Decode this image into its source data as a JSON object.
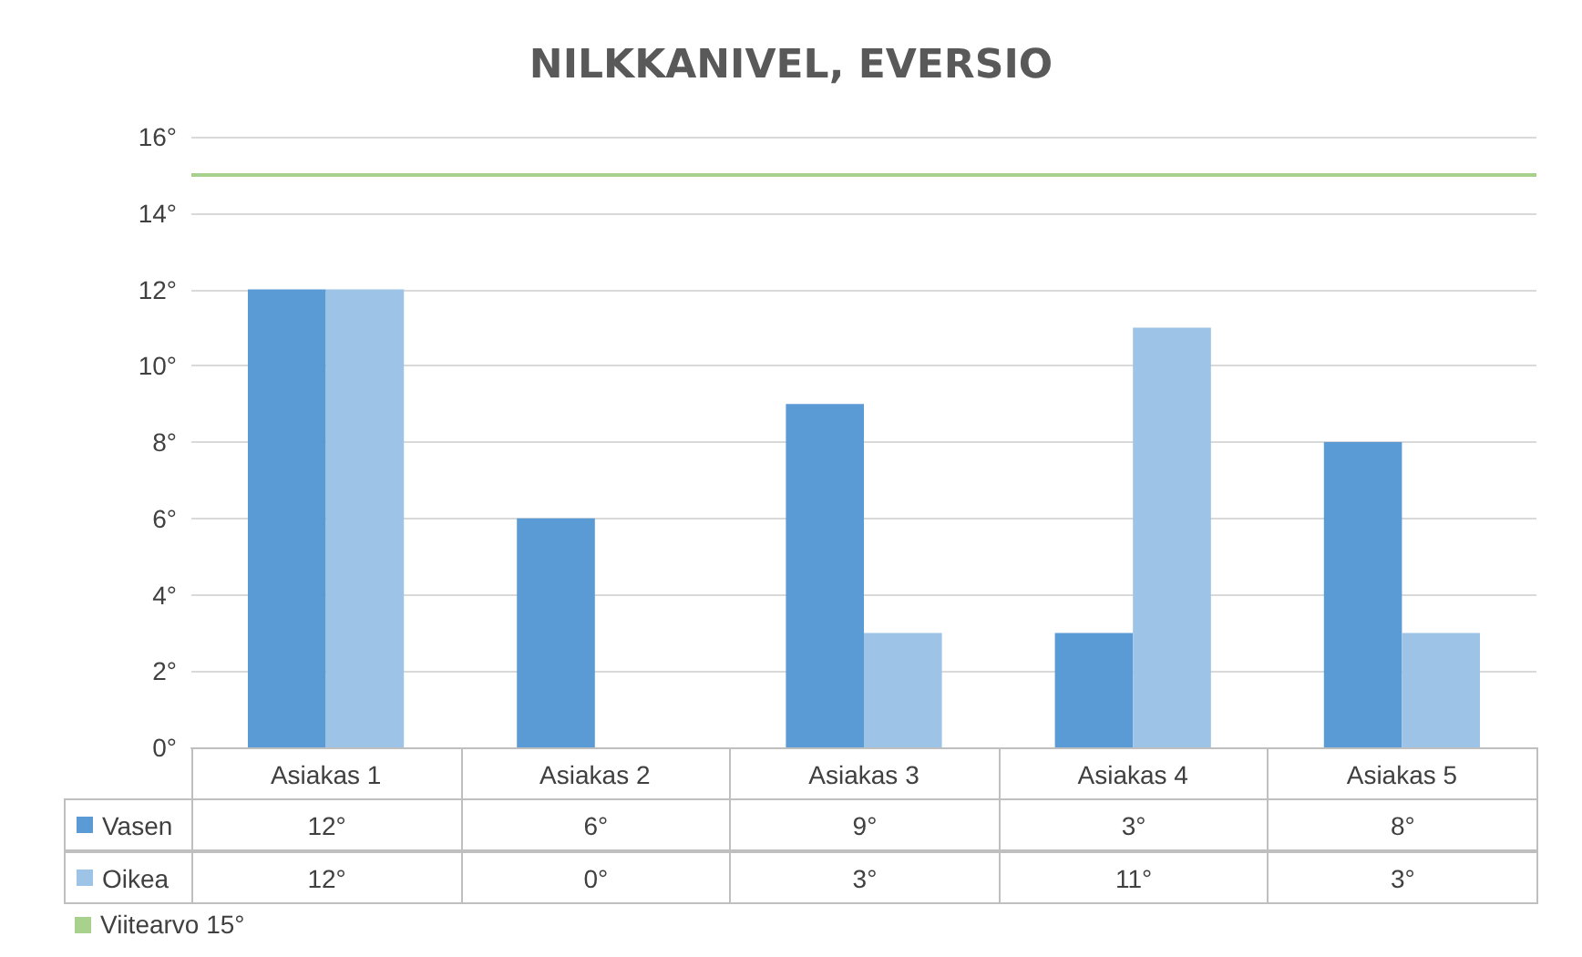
{
  "chart_data": {
    "type": "bar",
    "title": "NILKKANIVEL, EVERSIO",
    "categories": [
      "Asiakas 1",
      "Asiakas 2",
      "Asiakas 3",
      "Asiakas 4",
      "Asiakas 5"
    ],
    "series": [
      {
        "name": "Vasen",
        "color": "#5b9bd5",
        "values": [
          12,
          6,
          9,
          3,
          8
        ],
        "value_labels": [
          "12°",
          "6°",
          "9°",
          "3°",
          "8°"
        ]
      },
      {
        "name": "Oikea",
        "color": "#9dc3e6",
        "values": [
          12,
          0,
          3,
          11,
          3
        ],
        "value_labels": [
          "12°",
          "0°",
          "3°",
          "11°",
          "3°"
        ]
      }
    ],
    "ylim": [
      0,
      16
    ],
    "yticks": [
      {
        "value": 0,
        "label": "0°"
      },
      {
        "value": 2,
        "label": "2°"
      },
      {
        "value": 4,
        "label": "4°"
      },
      {
        "value": 6,
        "label": "6°"
      },
      {
        "value": 8,
        "label": "8°"
      },
      {
        "value": 10,
        "label": "10°"
      },
      {
        "value": 12,
        "label": "12°"
      },
      {
        "value": 14,
        "label": "14°"
      },
      {
        "value": 16,
        "label": "16°"
      }
    ],
    "ref_lines": [
      {
        "axis": "y",
        "value": 15,
        "label": "Viitearvo 15°",
        "color": "#a9d18e"
      }
    ],
    "grid": "y",
    "legend": "bottom"
  }
}
